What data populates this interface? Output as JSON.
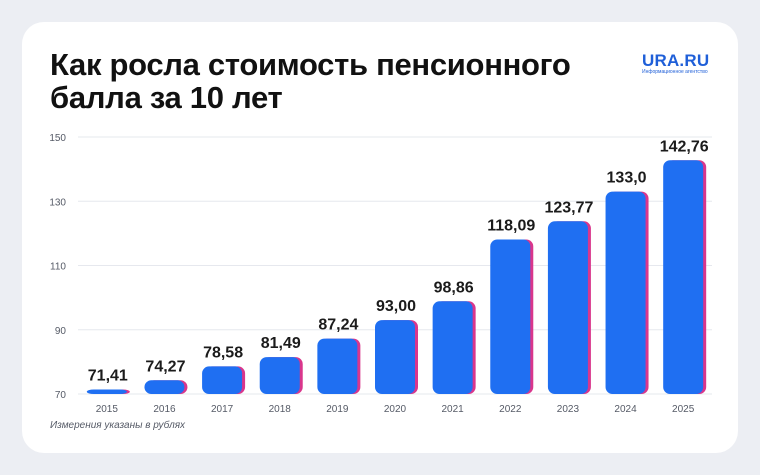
{
  "title": "Как росла стоимость пенсионного балла за 10 лет",
  "logo": {
    "name": "URA.RU",
    "tagline": "Информационное агентство"
  },
  "note": "Измерения указаны в рублях",
  "colors": {
    "bar": "#1f6ff2",
    "bar_shadow": "#d9368c",
    "grid": "#e6e8ee",
    "axis_text": "#555a66",
    "value_text": "#1b1b1b"
  },
  "chart_data": {
    "type": "bar",
    "categories": [
      "2015",
      "2016",
      "2017",
      "2018",
      "2019",
      "2020",
      "2021",
      "2022",
      "2023",
      "2024",
      "2025"
    ],
    "values": [
      71.41,
      74.27,
      78.58,
      81.49,
      87.24,
      93.0,
      98.86,
      118.09,
      123.77,
      133.0,
      142.76
    ],
    "value_labels": [
      "71,41",
      "74,27",
      "78,58",
      "81,49",
      "87,24",
      "93,00",
      "98,86",
      "118,09",
      "123,77",
      "133,0",
      "142,76"
    ],
    "yticks": [
      70,
      90,
      110,
      130,
      150
    ],
    "ylim": [
      70,
      150
    ],
    "grid": true,
    "legend": "none"
  }
}
